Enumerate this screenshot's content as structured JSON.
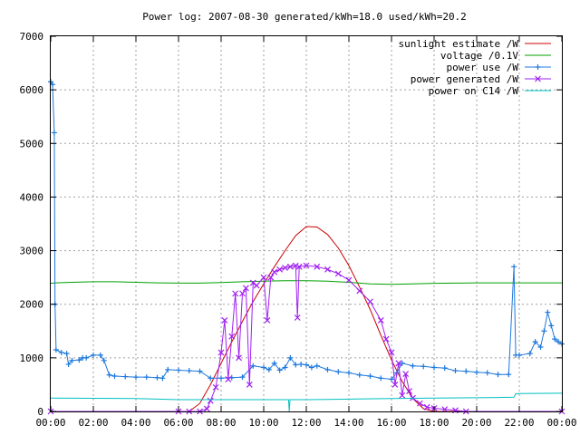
{
  "chart_data": {
    "type": "line",
    "title": "Power log: 2007-08-30 generated/kWh=18.0 used/kWh=20.2",
    "xlabel": "",
    "ylabel": "",
    "xlim": [
      "00:00",
      "24:00"
    ],
    "ylim": [
      0,
      7000
    ],
    "grid": true,
    "legend_position": "top-right",
    "x_ticks": [
      "00:00",
      "02:00",
      "04:00",
      "06:00",
      "08:00",
      "10:00",
      "12:00",
      "14:00",
      "16:00",
      "18:00",
      "20:00",
      "22:00",
      "00:00"
    ],
    "y_ticks": [
      "0",
      "1000",
      "2000",
      "3000",
      "4000",
      "5000",
      "6000",
      "7000"
    ],
    "series": [
      {
        "name": "sunlight estimate /W",
        "color": "#cc0000",
        "marker": "none",
        "points": [
          [
            "00:00",
            0
          ],
          [
            "06:00",
            0
          ],
          [
            "06:30",
            0
          ],
          [
            "07:00",
            150
          ],
          [
            "07:30",
            500
          ],
          [
            "08:00",
            900
          ],
          [
            "08:30",
            1300
          ],
          [
            "09:00",
            1680
          ],
          [
            "09:30",
            2050
          ],
          [
            "10:00",
            2380
          ],
          [
            "10:30",
            2700
          ],
          [
            "11:00",
            3000
          ],
          [
            "11:30",
            3280
          ],
          [
            "12:00",
            3450
          ],
          [
            "12:30",
            3440
          ],
          [
            "13:00",
            3300
          ],
          [
            "13:30",
            3050
          ],
          [
            "14:00",
            2720
          ],
          [
            "14:30",
            2320
          ],
          [
            "15:00",
            1900
          ],
          [
            "15:30",
            1420
          ],
          [
            "16:00",
            960
          ],
          [
            "16:30",
            560
          ],
          [
            "17:00",
            240
          ],
          [
            "17:30",
            50
          ],
          [
            "18:00",
            0
          ],
          [
            "24:00",
            0
          ]
        ]
      },
      {
        "name": "voltage /0.1V",
        "color": "#00a000",
        "marker": "none",
        "points": [
          [
            "00:00",
            2390
          ],
          [
            "00:15",
            2400
          ],
          [
            "01:00",
            2410
          ],
          [
            "02:00",
            2420
          ],
          [
            "03:00",
            2420
          ],
          [
            "04:00",
            2410
          ],
          [
            "05:00",
            2400
          ],
          [
            "06:00",
            2395
          ],
          [
            "07:00",
            2395
          ],
          [
            "08:00",
            2405
          ],
          [
            "09:00",
            2420
          ],
          [
            "10:00",
            2430
          ],
          [
            "11:00",
            2440
          ],
          [
            "12:00",
            2440
          ],
          [
            "13:00",
            2430
          ],
          [
            "14:00",
            2410
          ],
          [
            "15:00",
            2380
          ],
          [
            "16:00",
            2370
          ],
          [
            "17:00",
            2380
          ],
          [
            "18:00",
            2390
          ],
          [
            "19:00",
            2395
          ],
          [
            "20:00",
            2400
          ],
          [
            "21:00",
            2400
          ],
          [
            "22:00",
            2400
          ],
          [
            "23:00",
            2400
          ],
          [
            "24:00",
            2400
          ]
        ]
      },
      {
        "name": "power use /W",
        "color": "#1e78dc",
        "marker": "plus",
        "points": [
          [
            "00:00",
            6150
          ],
          [
            "00:05",
            6100
          ],
          [
            "00:10",
            5200
          ],
          [
            "00:12",
            2000
          ],
          [
            "00:15",
            1150
          ],
          [
            "00:30",
            1100
          ],
          [
            "00:45",
            1080
          ],
          [
            "00:50",
            880
          ],
          [
            "01:00",
            950
          ],
          [
            "01:20",
            960
          ],
          [
            "01:30",
            1000
          ],
          [
            "01:40",
            1000
          ],
          [
            "02:00",
            1050
          ],
          [
            "02:20",
            1050
          ],
          [
            "02:30",
            950
          ],
          [
            "02:45",
            680
          ],
          [
            "03:00",
            660
          ],
          [
            "03:30",
            650
          ],
          [
            "04:00",
            640
          ],
          [
            "04:30",
            640
          ],
          [
            "05:00",
            630
          ],
          [
            "05:15",
            620
          ],
          [
            "05:30",
            780
          ],
          [
            "06:00",
            770
          ],
          [
            "06:30",
            760
          ],
          [
            "07:00",
            750
          ],
          [
            "07:30",
            620
          ],
          [
            "08:00",
            620
          ],
          [
            "08:30",
            630
          ],
          [
            "09:00",
            640
          ],
          [
            "09:30",
            850
          ],
          [
            "10:00",
            820
          ],
          [
            "10:15",
            780
          ],
          [
            "10:30",
            900
          ],
          [
            "10:45",
            770
          ],
          [
            "11:00",
            820
          ],
          [
            "11:15",
            1000
          ],
          [
            "11:30",
            870
          ],
          [
            "11:45",
            880
          ],
          [
            "12:00",
            870
          ],
          [
            "12:15",
            820
          ],
          [
            "12:30",
            850
          ],
          [
            "13:00",
            780
          ],
          [
            "13:30",
            740
          ],
          [
            "14:00",
            720
          ],
          [
            "14:30",
            680
          ],
          [
            "15:00",
            660
          ],
          [
            "15:30",
            620
          ],
          [
            "16:00",
            600
          ],
          [
            "16:15",
            720
          ],
          [
            "16:30",
            900
          ],
          [
            "17:00",
            850
          ],
          [
            "17:30",
            840
          ],
          [
            "18:00",
            820
          ],
          [
            "18:30",
            810
          ],
          [
            "19:00",
            760
          ],
          [
            "19:30",
            750
          ],
          [
            "20:00",
            730
          ],
          [
            "20:30",
            720
          ],
          [
            "21:00",
            690
          ],
          [
            "21:30",
            690
          ],
          [
            "21:45",
            2700
          ],
          [
            "21:50",
            1050
          ],
          [
            "22:00",
            1050
          ],
          [
            "22:30",
            1080
          ],
          [
            "22:45",
            1300
          ],
          [
            "23:00",
            1200
          ],
          [
            "23:10",
            1500
          ],
          [
            "23:20",
            1850
          ],
          [
            "23:30",
            1600
          ],
          [
            "23:40",
            1350
          ],
          [
            "23:50",
            1300
          ],
          [
            "24:00",
            1260
          ]
        ]
      },
      {
        "name": "power generated /W",
        "color": "#a020f0",
        "marker": "cross",
        "points": [
          [
            "00:00",
            0
          ],
          [
            "06:00",
            0
          ],
          [
            "06:30",
            0
          ],
          [
            "07:00",
            0
          ],
          [
            "07:20",
            50
          ],
          [
            "07:30",
            200
          ],
          [
            "07:45",
            450
          ],
          [
            "08:00",
            1100
          ],
          [
            "08:10",
            1700
          ],
          [
            "08:20",
            600
          ],
          [
            "08:30",
            1400
          ],
          [
            "08:40",
            2200
          ],
          [
            "08:50",
            1000
          ],
          [
            "09:00",
            2200
          ],
          [
            "09:10",
            2300
          ],
          [
            "09:20",
            500
          ],
          [
            "09:30",
            2400
          ],
          [
            "09:40",
            2350
          ],
          [
            "10:00",
            2500
          ],
          [
            "10:10",
            1700
          ],
          [
            "10:20",
            2500
          ],
          [
            "10:30",
            2600
          ],
          [
            "10:45",
            2650
          ],
          [
            "11:00",
            2680
          ],
          [
            "11:15",
            2700
          ],
          [
            "11:30",
            2720
          ],
          [
            "11:35",
            1750
          ],
          [
            "11:40",
            2700
          ],
          [
            "12:00",
            2720
          ],
          [
            "12:30",
            2700
          ],
          [
            "13:00",
            2650
          ],
          [
            "13:30",
            2570
          ],
          [
            "14:00",
            2450
          ],
          [
            "14:30",
            2250
          ],
          [
            "15:00",
            2050
          ],
          [
            "15:30",
            1700
          ],
          [
            "15:45",
            1350
          ],
          [
            "16:00",
            1100
          ],
          [
            "16:10",
            500
          ],
          [
            "16:20",
            900
          ],
          [
            "16:30",
            300
          ],
          [
            "16:40",
            700
          ],
          [
            "16:50",
            380
          ],
          [
            "17:00",
            250
          ],
          [
            "17:20",
            150
          ],
          [
            "17:40",
            80
          ],
          [
            "18:00",
            60
          ],
          [
            "18:30",
            40
          ],
          [
            "19:00",
            20
          ],
          [
            "19:30",
            0
          ],
          [
            "24:00",
            0
          ]
        ]
      },
      {
        "name": "power on C14 /W",
        "color": "#00c0c0",
        "marker": "none",
        "points": [
          [
            "00:00",
            250
          ],
          [
            "02:00",
            245
          ],
          [
            "04:00",
            240
          ],
          [
            "06:00",
            220
          ],
          [
            "08:00",
            220
          ],
          [
            "10:00",
            220
          ],
          [
            "11:10",
            220
          ],
          [
            "11:12",
            0
          ],
          [
            "11:14",
            220
          ],
          [
            "12:00",
            220
          ],
          [
            "14:00",
            230
          ],
          [
            "16:00",
            240
          ],
          [
            "18:00",
            250
          ],
          [
            "20:00",
            255
          ],
          [
            "21:00",
            260
          ],
          [
            "21:45",
            265
          ],
          [
            "21:50",
            330
          ],
          [
            "22:00",
            335
          ],
          [
            "24:00",
            340
          ]
        ]
      }
    ]
  }
}
